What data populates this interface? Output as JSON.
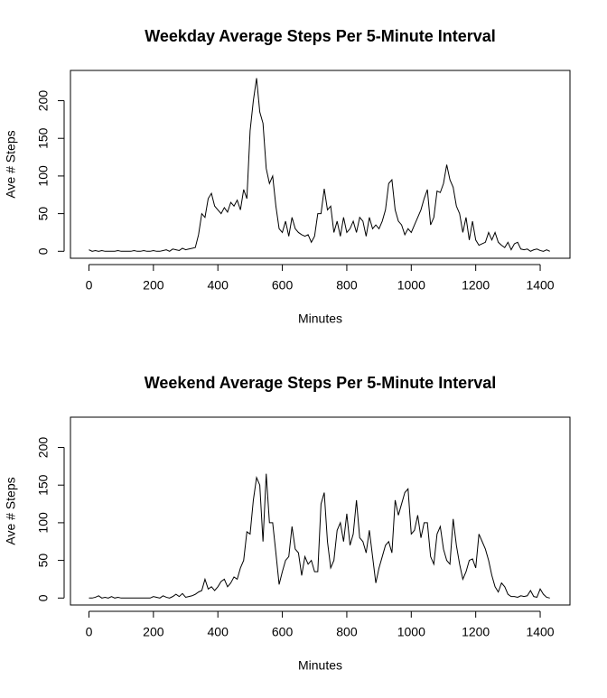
{
  "chart_data": [
    {
      "type": "line",
      "title": "Weekday Average Steps Per 5-Minute Interval",
      "xlabel": "Minutes",
      "ylabel": "Ave # Steps",
      "color": "#000000",
      "xlim": [
        -57.4,
        1492.4
      ],
      "ylim": [
        -9.24,
        240.2
      ],
      "xticks": [
        0,
        200,
        400,
        600,
        800,
        1000,
        1200,
        1400
      ],
      "yticks": [
        0,
        50,
        100,
        150,
        200
      ],
      "x": [
        0,
        10,
        20,
        30,
        40,
        50,
        60,
        70,
        80,
        90,
        100,
        110,
        120,
        130,
        140,
        150,
        160,
        170,
        180,
        190,
        200,
        210,
        220,
        230,
        240,
        250,
        260,
        270,
        280,
        290,
        300,
        310,
        320,
        330,
        340,
        350,
        360,
        370,
        380,
        390,
        400,
        410,
        420,
        430,
        440,
        450,
        460,
        470,
        480,
        490,
        500,
        510,
        520,
        530,
        540,
        550,
        560,
        570,
        580,
        590,
        600,
        610,
        620,
        630,
        640,
        650,
        660,
        670,
        680,
        690,
        700,
        710,
        720,
        730,
        740,
        750,
        760,
        770,
        780,
        790,
        800,
        810,
        820,
        830,
        840,
        850,
        860,
        870,
        880,
        890,
        900,
        910,
        920,
        930,
        940,
        950,
        960,
        970,
        980,
        990,
        1000,
        1010,
        1020,
        1030,
        1040,
        1050,
        1060,
        1070,
        1080,
        1090,
        1100,
        1110,
        1120,
        1130,
        1140,
        1150,
        1160,
        1170,
        1180,
        1190,
        1200,
        1210,
        1220,
        1230,
        1240,
        1250,
        1260,
        1270,
        1280,
        1290,
        1300,
        1310,
        1320,
        1330,
        1340,
        1350,
        1360,
        1370,
        1380,
        1390,
        1400,
        1410,
        1420,
        1430
      ],
      "values": [
        2,
        0,
        1,
        0,
        1,
        0,
        0,
        0,
        0,
        1,
        0,
        0,
        0,
        0,
        1,
        0,
        0,
        1,
        0,
        0,
        1,
        0,
        0,
        1,
        2,
        0,
        3,
        2,
        1,
        4,
        2,
        3,
        4,
        5,
        22,
        50,
        45,
        70,
        77,
        60,
        55,
        50,
        58,
        52,
        65,
        60,
        68,
        55,
        82,
        70,
        160,
        200,
        230,
        185,
        170,
        110,
        90,
        100,
        60,
        30,
        25,
        40,
        20,
        45,
        30,
        25,
        22,
        20,
        22,
        12,
        20,
        50,
        50,
        83,
        55,
        60,
        25,
        40,
        20,
        45,
        25,
        30,
        40,
        25,
        45,
        40,
        20,
        45,
        30,
        35,
        30,
        40,
        55,
        90,
        95,
        55,
        40,
        35,
        22,
        30,
        25,
        35,
        45,
        55,
        70,
        82,
        35,
        45,
        80,
        78,
        90,
        115,
        95,
        85,
        60,
        50,
        25,
        45,
        15,
        40,
        15,
        8,
        10,
        12,
        25,
        15,
        25,
        12,
        8,
        5,
        12,
        2,
        10,
        12,
        3,
        2,
        3,
        0,
        2,
        3,
        1,
        0,
        2,
        0
      ]
    },
    {
      "type": "line",
      "title": "Weekend Average Steps Per 5-Minute Interval",
      "xlabel": "Minutes",
      "ylabel": "Ave # Steps",
      "color": "#000000",
      "xlim": [
        -57.4,
        1492.4
      ],
      "ylim": [
        -9.24,
        240.2
      ],
      "xticks": [
        0,
        200,
        400,
        600,
        800,
        1000,
        1200,
        1400
      ],
      "yticks": [
        0,
        50,
        100,
        150,
        200
      ],
      "x": [
        0,
        10,
        20,
        30,
        40,
        50,
        60,
        70,
        80,
        90,
        100,
        110,
        120,
        130,
        140,
        150,
        160,
        170,
        180,
        190,
        200,
        210,
        220,
        230,
        240,
        250,
        260,
        270,
        280,
        290,
        300,
        310,
        320,
        330,
        340,
        350,
        360,
        370,
        380,
        390,
        400,
        410,
        420,
        430,
        440,
        450,
        460,
        470,
        480,
        490,
        500,
        510,
        520,
        530,
        540,
        550,
        560,
        570,
        580,
        590,
        600,
        610,
        620,
        630,
        640,
        650,
        660,
        670,
        680,
        690,
        700,
        710,
        720,
        730,
        740,
        750,
        760,
        770,
        780,
        790,
        800,
        810,
        820,
        830,
        840,
        850,
        860,
        870,
        880,
        890,
        900,
        910,
        920,
        930,
        940,
        950,
        960,
        970,
        980,
        990,
        1000,
        1010,
        1020,
        1030,
        1040,
        1050,
        1060,
        1070,
        1080,
        1090,
        1100,
        1110,
        1120,
        1130,
        1140,
        1150,
        1160,
        1170,
        1180,
        1190,
        1200,
        1210,
        1220,
        1230,
        1240,
        1250,
        1260,
        1270,
        1280,
        1290,
        1300,
        1310,
        1320,
        1330,
        1340,
        1350,
        1360,
        1370,
        1380,
        1390,
        1400,
        1410,
        1420,
        1430
      ],
      "values": [
        0,
        0,
        1,
        3,
        0,
        1,
        0,
        2,
        0,
        1,
        0,
        0,
        0,
        0,
        0,
        0,
        0,
        0,
        0,
        0,
        2,
        1,
        0,
        3,
        1,
        0,
        2,
        5,
        2,
        6,
        1,
        2,
        3,
        5,
        8,
        10,
        25,
        12,
        15,
        10,
        15,
        22,
        25,
        15,
        20,
        28,
        25,
        40,
        50,
        88,
        85,
        130,
        160,
        150,
        75,
        165,
        100,
        100,
        60,
        18,
        35,
        50,
        55,
        95,
        65,
        60,
        30,
        55,
        45,
        50,
        35,
        35,
        125,
        140,
        75,
        40,
        50,
        90,
        100,
        75,
        112,
        70,
        85,
        130,
        80,
        75,
        60,
        90,
        55,
        20,
        40,
        55,
        70,
        75,
        60,
        130,
        110,
        125,
        140,
        145,
        85,
        90,
        110,
        80,
        100,
        100,
        55,
        45,
        85,
        95,
        65,
        50,
        45,
        105,
        70,
        45,
        25,
        35,
        50,
        52,
        40,
        85,
        75,
        65,
        50,
        30,
        15,
        8,
        20,
        15,
        5,
        2,
        2,
        1,
        3,
        2,
        3,
        10,
        2,
        1,
        12,
        5,
        1,
        0
      ]
    }
  ]
}
